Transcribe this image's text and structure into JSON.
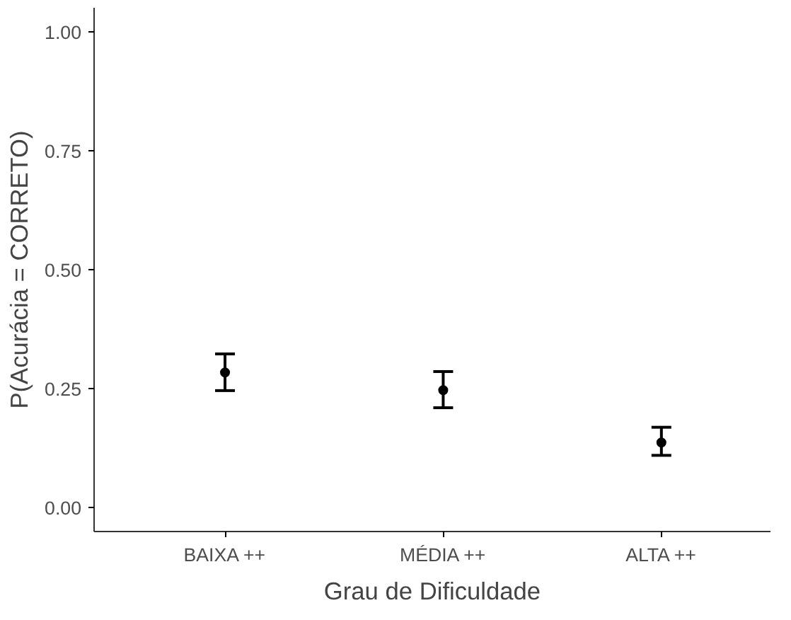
{
  "chart_data": {
    "type": "scatter",
    "xlabel": "Grau de Dificuldade",
    "ylabel": "P(Acurácia = CORRETO)",
    "categories": [
      "BAIXA ++",
      "MÉDIA ++",
      "ALTA ++"
    ],
    "series": [
      {
        "color": "#000000",
        "values": [
          0.284,
          0.247,
          0.137
        ],
        "errors": [
          [
            0.246,
            0.323
          ],
          [
            0.21,
            0.286
          ],
          [
            0.11,
            0.169
          ]
        ]
      }
    ],
    "ylim": [
      -0.05,
      1.05
    ],
    "yticks": [
      {
        "value": 0,
        "label": "0.00"
      },
      {
        "value": 0.25,
        "label": "0.25"
      },
      {
        "value": 0.5,
        "label": "0.50"
      },
      {
        "value": 0.75,
        "label": "0.75"
      },
      {
        "value": 1,
        "label": "1.00"
      }
    ],
    "grid": false,
    "marker": "circle"
  }
}
